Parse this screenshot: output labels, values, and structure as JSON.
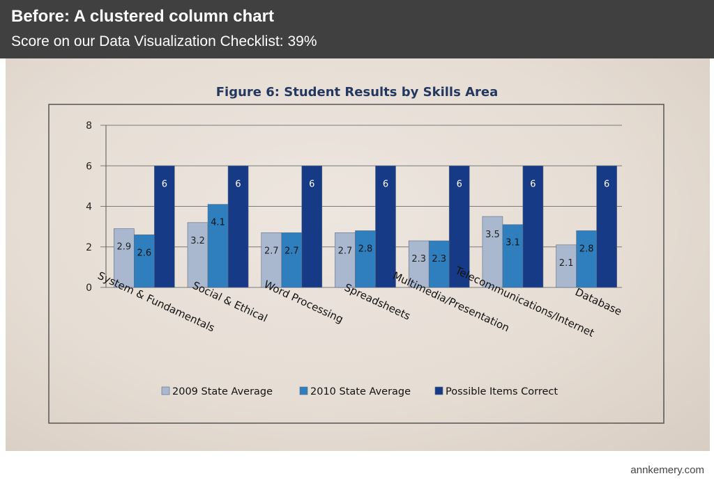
{
  "header": {
    "title": "Before: A clustered column chart",
    "subtitle": "Score on our Data Visualization Checklist:  39%"
  },
  "credit": "annkemery.com",
  "colors": {
    "header_bg": "#404040",
    "series_2009": "#a9b8cf",
    "series_2010": "#2f7fbe",
    "series_possible": "#173a86",
    "paper": "#e8e0d8"
  },
  "chart_data": {
    "type": "bar",
    "title": "Figure 6: Student Results by Skills Area",
    "categories": [
      "System & Fundamentals",
      "Social & Ethical",
      "Word Processing",
      "Spreadsheets",
      "Multimedia/Presentation",
      "Telecommunications/Internet",
      "Database"
    ],
    "series": [
      {
        "name": "2009 State Average",
        "values": [
          2.9,
          3.2,
          2.7,
          2.7,
          2.3,
          3.5,
          2.1
        ]
      },
      {
        "name": "2010 State Average",
        "values": [
          2.6,
          4.1,
          2.7,
          2.8,
          2.3,
          3.1,
          2.8
        ]
      },
      {
        "name": "Possible Items Correct",
        "values": [
          6,
          6,
          6,
          6,
          6,
          6,
          6
        ]
      }
    ],
    "ylim": [
      0,
      8
    ],
    "yticks": [
      0,
      2,
      4,
      6,
      8
    ],
    "grid": true,
    "legend": "bottom"
  }
}
